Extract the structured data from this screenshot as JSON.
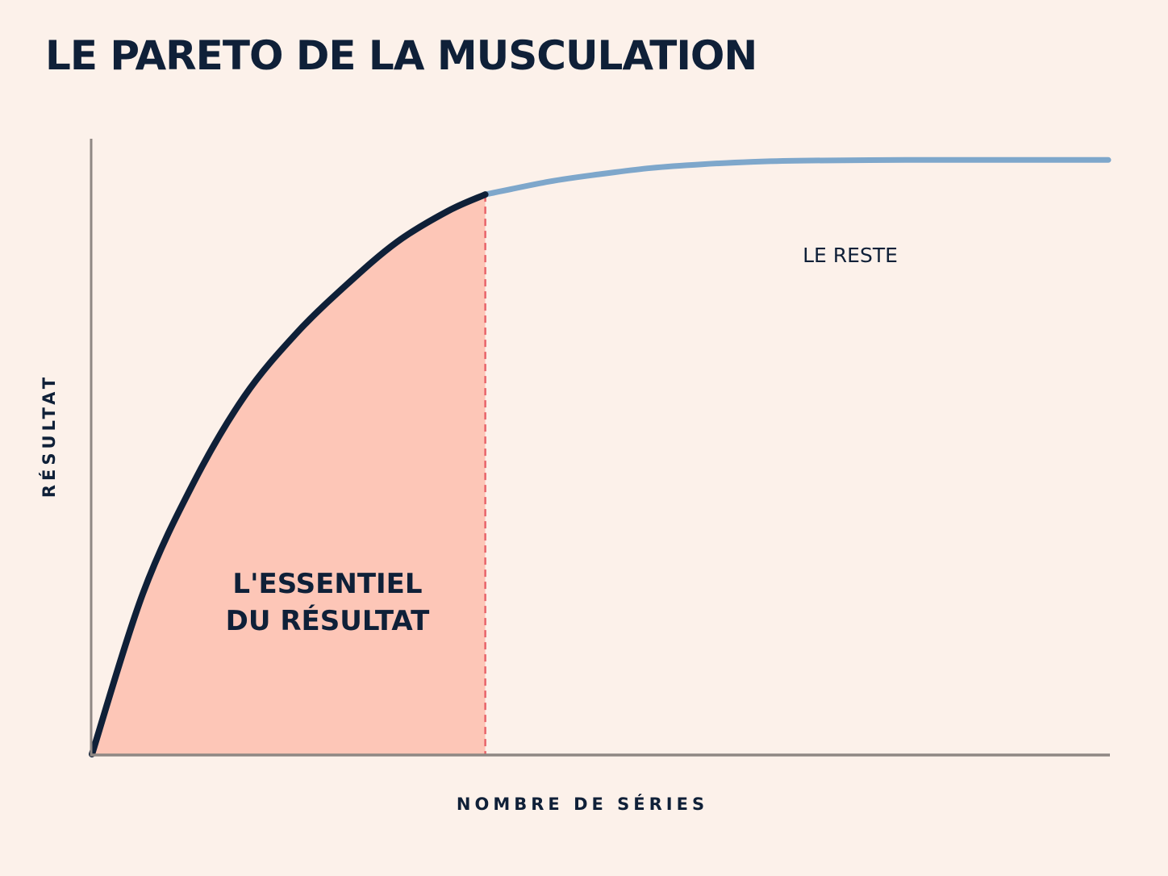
{
  "title": "LE PARETO DE LA MUSCULATION",
  "chart_data": {
    "type": "area",
    "title": "LE PARETO DE LA MUSCULATION",
    "xlabel": "NOMBRE DE SÉRIES",
    "ylabel": "RÉSULTAT",
    "xlim": [
      0,
      100
    ],
    "ylim": [
      0,
      100
    ],
    "grid": false,
    "x": [
      0,
      5,
      10,
      15,
      20,
      25,
      30,
      35,
      38.7,
      45,
      50,
      55,
      60,
      65,
      70,
      80,
      90,
      100
    ],
    "values": [
      0,
      26,
      44,
      58,
      68,
      76,
      83,
      88,
      90.7,
      92.8,
      94,
      95,
      95.6,
      96,
      96.2,
      96.3,
      96.3,
      96.3
    ],
    "threshold_x": 38.7,
    "series": [
      {
        "segment": "essential",
        "color": "#0f2038",
        "x_range": [
          0,
          38.7
        ]
      },
      {
        "segment": "rest",
        "color": "#7ea7cb",
        "x_range": [
          38.7,
          100
        ]
      }
    ],
    "annotations": {
      "essential_line1": "L'ESSENTIEL",
      "essential_line2": "DU RÉSULTAT",
      "rest": "LE RESTE"
    },
    "colors": {
      "essential_fill": "#fdc6b7",
      "threshold": "#e8646a",
      "axis": "#8f8884",
      "text": "#0f2038"
    }
  }
}
